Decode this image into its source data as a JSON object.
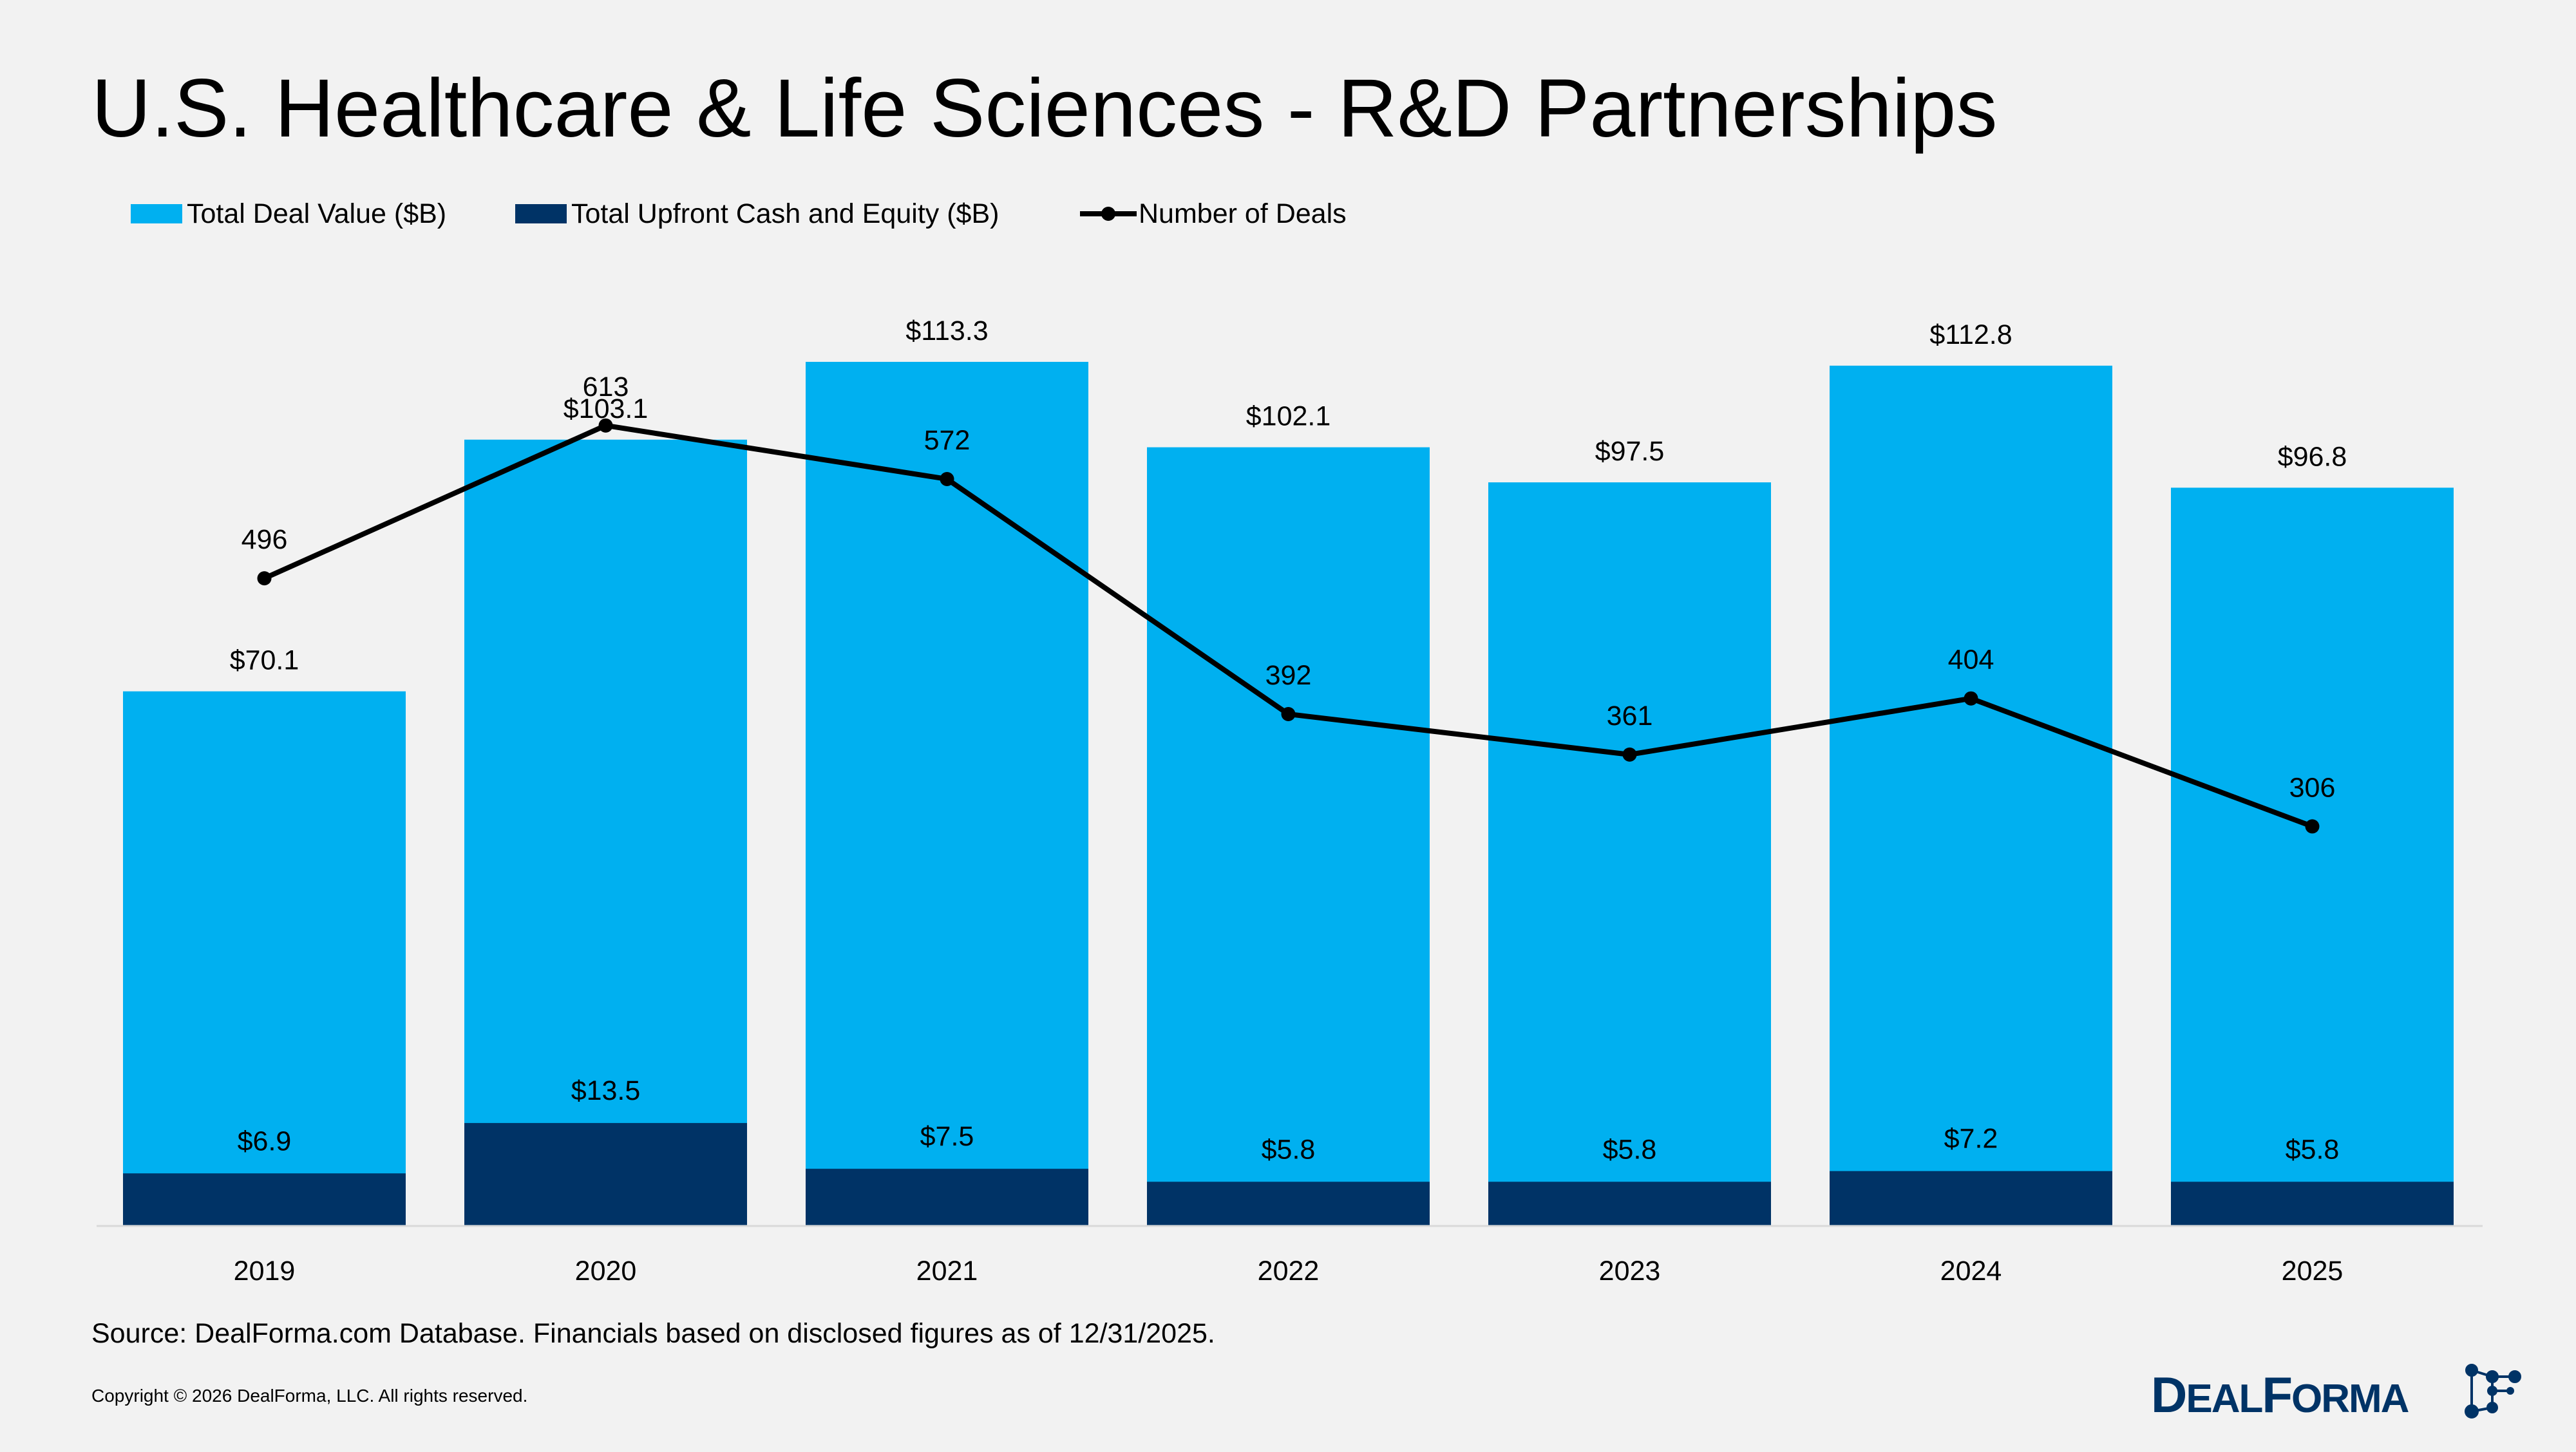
{
  "title": "U.S. Healthcare & Life Sciences - R&D Partnerships",
  "source": "Source: DealForma.com Database. Financials based on disclosed figures as of 12/31/2025.",
  "copyright": "Copyright © 2026 DealForma, LLC. All rights reserved.",
  "logo": {
    "text": "DEALFORMA",
    "color": "#003366"
  },
  "colors": {
    "total": "#00b0f0",
    "upfront": "#003366",
    "line": "#000000",
    "background": "#f2f2f2"
  },
  "chart_data": {
    "type": "bar",
    "title": "U.S. Healthcare & Life Sciences - R&D Partnerships",
    "legend_position": "top-left",
    "grid": false,
    "categories": [
      "2019",
      "2020",
      "2021",
      "2022",
      "2023",
      "2024",
      "2025"
    ],
    "series": [
      {
        "name": "Total Deal Value ($B)",
        "type": "bar",
        "values": [
          70.1,
          103.1,
          113.3,
          102.1,
          97.5,
          112.8,
          96.8
        ],
        "labels": [
          "$70.1",
          "$103.1",
          "$113.3",
          "$102.1",
          "$97.5",
          "$112.8",
          "$96.8"
        ]
      },
      {
        "name": "Total Upfront Cash and Equity ($B)",
        "type": "bar",
        "values": [
          6.9,
          13.5,
          7.5,
          5.8,
          5.8,
          7.2,
          5.8
        ],
        "labels": [
          "$6.9",
          "$13.5",
          "$7.5",
          "$5.8",
          "$5.8",
          "$7.2",
          "$5.8"
        ]
      },
      {
        "name": "Number of Deals",
        "type": "line",
        "values": [
          496,
          613,
          572,
          392,
          361,
          404,
          306
        ],
        "labels": [
          "496",
          "613",
          "572",
          "392",
          "361",
          "404",
          "306"
        ]
      }
    ]
  }
}
